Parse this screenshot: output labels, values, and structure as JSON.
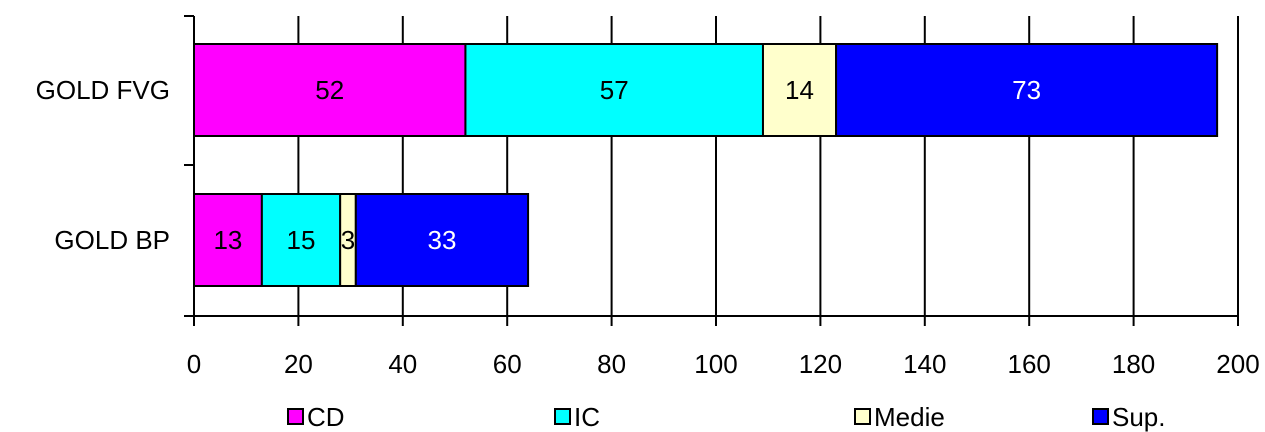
{
  "chart_data": {
    "type": "bar",
    "orientation": "horizontal",
    "stacked": true,
    "categories": [
      "GOLD FVG",
      "GOLD BP"
    ],
    "series": [
      {
        "name": "CD",
        "values": [
          52,
          13
        ],
        "color": "#ff00ff",
        "label_color": "#000000"
      },
      {
        "name": "IC",
        "values": [
          57,
          15
        ],
        "color": "#00ffff",
        "label_color": "#000000"
      },
      {
        "name": "Medie",
        "values": [
          14,
          3
        ],
        "color": "#ffffcc",
        "label_color": "#000000"
      },
      {
        "name": "Sup.",
        "values": [
          73,
          33
        ],
        "color": "#0000ff",
        "label_color": "#ffffff"
      }
    ],
    "xlim": [
      0,
      200
    ],
    "xticks": [
      0,
      20,
      40,
      60,
      80,
      100,
      120,
      140,
      160,
      180,
      200
    ],
    "grid": "vertical",
    "legend": "bottom",
    "title": "",
    "xlabel": "",
    "ylabel": ""
  }
}
